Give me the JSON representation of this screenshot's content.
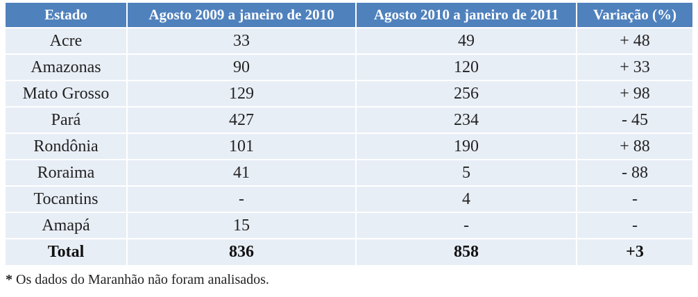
{
  "table": {
    "headers": [
      "Estado",
      "Agosto 2009 a janeiro de 2010",
      "Agosto 2010 a janeiro de 2011",
      "Variação (%)"
    ],
    "rows": [
      [
        "Acre",
        "33",
        "49",
        "+ 48"
      ],
      [
        "Amazonas",
        "90",
        "120",
        "+ 33"
      ],
      [
        "Mato Grosso",
        "129",
        "256",
        "+ 98"
      ],
      [
        "Pará",
        "427",
        "234",
        "- 45"
      ],
      [
        "Rondônia",
        "101",
        "190",
        "+ 88"
      ],
      [
        "Roraima",
        "41",
        "5",
        "- 88"
      ],
      [
        "Tocantins",
        "-",
        "4",
        "-"
      ],
      [
        "Amapá",
        "15",
        "-",
        "-"
      ]
    ],
    "total": [
      "Total",
      "836",
      "858",
      "+3"
    ]
  },
  "footnote": {
    "marker": "*",
    "text": " Os dados do Maranhão não foram analisados."
  },
  "colors": {
    "header_bg": "#4f81bd",
    "header_text": "#ffffff",
    "row_bg": "#e8eef6"
  }
}
